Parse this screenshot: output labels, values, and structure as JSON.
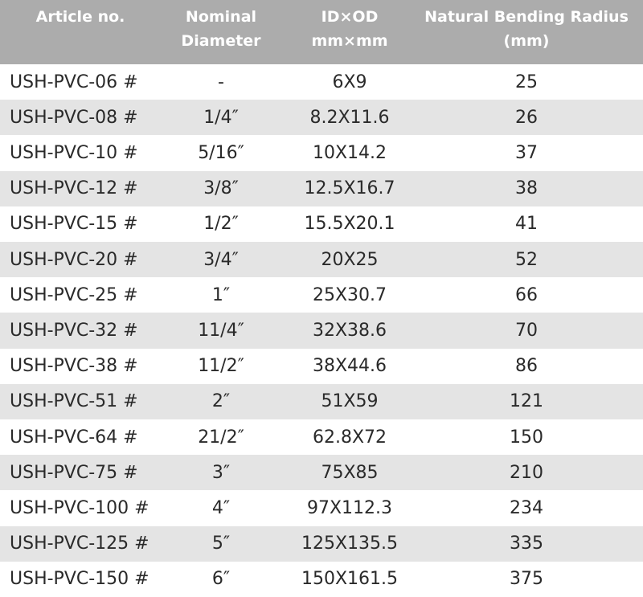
{
  "table": {
    "header": [
      [
        "Article no."
      ],
      [
        "Nominal",
        "Diameter"
      ],
      [
        "ID×OD",
        "mm×mm"
      ],
      [
        "Natural Bending Radius",
        "(mm)"
      ]
    ],
    "rows": [
      [
        "USH-PVC-06 #",
        "-",
        "6X9",
        25
      ],
      [
        "USH-PVC-08 #",
        "1/4″",
        "8.2X11.6",
        26
      ],
      [
        "USH-PVC-10 #",
        "5/16″",
        "10X14.2",
        37
      ],
      [
        "USH-PVC-12 #",
        "3/8″",
        "12.5X16.7",
        38
      ],
      [
        "USH-PVC-15 #",
        "1/2″",
        "15.5X20.1",
        41
      ],
      [
        "USH-PVC-20 #",
        "3/4″",
        "20X25",
        52
      ],
      [
        "USH-PVC-25 #",
        "1″",
        "25X30.7",
        66
      ],
      [
        "USH-PVC-32 #",
        "11/4″",
        "32X38.6",
        70
      ],
      [
        "USH-PVC-38 #",
        "11/2″",
        "38X44.6",
        86
      ],
      [
        "USH-PVC-51 #",
        "2″",
        "51X59",
        121
      ],
      [
        "USH-PVC-64 #",
        "21/2″",
        "62.8X72",
        150
      ],
      [
        "USH-PVC-75 #",
        "3″",
        "75X85",
        210
      ],
      [
        "USH-PVC-100 #",
        "4″",
        "97X112.3",
        234
      ],
      [
        "USH-PVC-125 #",
        "5″",
        "125X135.5",
        335
      ],
      [
        "USH-PVC-150 #",
        "6″",
        "150X161.5",
        375
      ]
    ]
  }
}
